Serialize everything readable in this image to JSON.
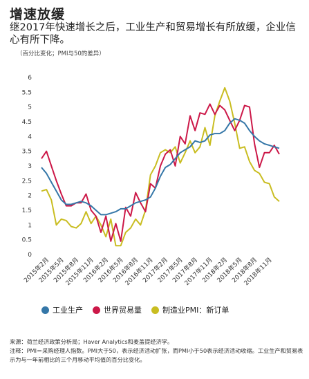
{
  "header": {
    "title": "增速放缓",
    "subtitle": "继2017年快速增长之后，工业生产和贸易增长有所放缓，企业信心有所下降。",
    "unit_note": "（百分比变化；PMI与50的差异）"
  },
  "footer": {
    "source": "来源：荷兰经济政策分析局；Haver Analytics和麦盖提经济学。",
    "note": "注释：PMI＝采购经理人指数。PMI大于50，表示经济活动扩张，而PMI小于50表示经济活动收缩。工业生产和贸易表示为与一年前相比的三个月移动平均值的百分比变化。"
  },
  "chart_data": {
    "type": "line",
    "ylim": [
      0,
      6
    ],
    "y_ticks": [
      "0",
      "0.5",
      "1",
      "1.5",
      "2",
      "2.5",
      "3",
      "3.5",
      "4",
      "4.5",
      "5",
      "5.5",
      "6"
    ],
    "x_ticks": [
      "2015年2月",
      "2015年5月",
      "2015年8月",
      "2015年11月",
      "2016年2月",
      "2016年5月",
      "2016年8月",
      "2016年11月",
      "2017年2月",
      "2017年5月",
      "2017年8月",
      "2017年11月",
      "2018年2月",
      "2018年5月",
      "2018年8月",
      "2018年11月"
    ],
    "x_start": "2015-01",
    "grid": false,
    "legend_position": "bottom",
    "series": [
      {
        "name": "工业生产",
        "color": "#3577a8",
        "values": [
          2.95,
          2.75,
          2.45,
          2.15,
          1.85,
          1.7,
          1.7,
          1.75,
          1.8,
          1.75,
          1.65,
          1.5,
          1.35,
          1.35,
          1.4,
          1.45,
          1.55,
          1.55,
          1.65,
          1.75,
          1.8,
          1.85,
          1.95,
          2.25,
          2.65,
          2.95,
          3.05,
          3.25,
          3.45,
          3.55,
          3.65,
          3.85,
          3.8,
          3.85,
          4.05,
          4.1,
          4.1,
          4.2,
          4.45,
          4.6,
          4.55,
          4.45,
          4.2,
          4.0,
          3.85,
          3.75,
          3.7,
          3.65,
          3.6
        ]
      },
      {
        "name": "世界贸易量",
        "color": "#cc1848",
        "values": [
          3.25,
          3.5,
          3.0,
          2.5,
          2.05,
          1.65,
          1.65,
          1.75,
          1.75,
          2.05,
          1.5,
          1.3,
          0.75,
          1.3,
          0.45,
          1.05,
          0.45,
          1.6,
          1.3,
          2.1,
          1.75,
          1.45,
          2.4,
          2.25,
          3.0,
          3.4,
          3.55,
          3.0,
          4.0,
          3.75,
          4.7,
          4.2,
          4.8,
          4.75,
          5.1,
          4.75,
          5.05,
          4.9,
          4.55,
          4.2,
          4.55,
          5.05,
          5.0,
          3.75,
          2.95,
          3.45,
          3.45,
          3.7,
          3.4
        ]
      },
      {
        "name": "制造业PMI：新订单",
        "color": "#c9bd21",
        "values": [
          2.15,
          2.2,
          1.85,
          1.0,
          1.2,
          1.15,
          0.95,
          0.9,
          1.05,
          1.45,
          1.05,
          1.3,
          1.0,
          0.6,
          1.2,
          0.3,
          0.3,
          0.75,
          0.9,
          1.2,
          1.0,
          1.5,
          2.7,
          3.0,
          3.45,
          3.55,
          3.45,
          3.65,
          3.1,
          3.45,
          3.85,
          3.45,
          3.65,
          4.3,
          3.7,
          4.7,
          5.2,
          5.65,
          5.2,
          4.45,
          3.6,
          3.65,
          3.15,
          2.85,
          2.75,
          2.45,
          2.4,
          1.95,
          1.8
        ]
      }
    ]
  }
}
